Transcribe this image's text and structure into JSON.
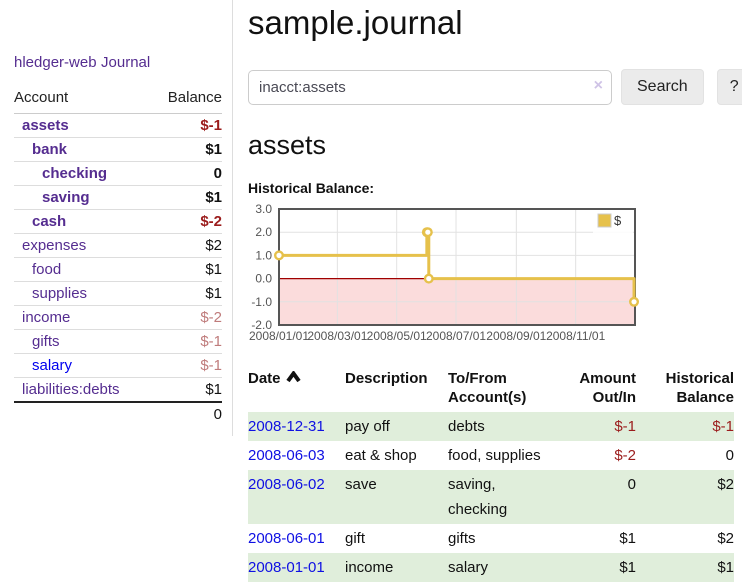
{
  "sidebar": {
    "app_title": "hledger-web",
    "journal_label": "Journal",
    "accounts_table": {
      "headers": {
        "account": "Account",
        "balance": "Balance"
      },
      "rows": [
        {
          "name": "assets",
          "depth": 1,
          "bold": true,
          "link_color": "purple",
          "balance": "$-1",
          "balance_color": "strong-negative"
        },
        {
          "name": "bank",
          "depth": 2,
          "bold": true,
          "link_color": "purple",
          "balance": "$1",
          "balance_color": "normal"
        },
        {
          "name": "checking",
          "depth": 3,
          "bold": true,
          "link_color": "purple",
          "balance": "0",
          "balance_color": "normal"
        },
        {
          "name": "saving",
          "depth": 3,
          "bold": true,
          "link_color": "purple",
          "balance": "$1",
          "balance_color": "normal"
        },
        {
          "name": "cash",
          "depth": 2,
          "bold": true,
          "link_color": "purple",
          "balance": "$-2",
          "balance_color": "strong-negative"
        },
        {
          "name": "expenses",
          "depth": 1,
          "bold": false,
          "link_color": "purple",
          "balance": "$2",
          "balance_color": "normal"
        },
        {
          "name": "food",
          "depth": 2,
          "bold": false,
          "link_color": "purple",
          "balance": "$1",
          "balance_color": "normal"
        },
        {
          "name": "supplies",
          "depth": 2,
          "bold": false,
          "link_color": "purple",
          "balance": "$1",
          "balance_color": "normal"
        },
        {
          "name": "income",
          "depth": 1,
          "bold": false,
          "link_color": "purple",
          "balance": "$-2",
          "balance_color": "dim-negative"
        },
        {
          "name": "gifts",
          "depth": 2,
          "bold": false,
          "link_color": "purple",
          "balance": "$-1",
          "balance_color": "dim-negative"
        },
        {
          "name": "salary",
          "depth": 2,
          "bold": false,
          "link_color": "blue",
          "balance": "$-1",
          "balance_color": "dim-negative"
        },
        {
          "name": "liabilities:debts",
          "depth": 1,
          "bold": false,
          "link_color": "purple",
          "balance": "$1",
          "balance_color": "normal"
        }
      ],
      "total": "0"
    }
  },
  "header": {
    "title": "sample.journal"
  },
  "search": {
    "query": "inacct:assets",
    "clear_icon": "×",
    "search_label": "Search",
    "help_label": "?"
  },
  "account_page": {
    "heading": "assets",
    "chart_label": "Historical Balance:"
  },
  "chart_data": {
    "type": "line",
    "title": "Historical Balance",
    "step": true,
    "series": [
      {
        "name": "$",
        "color": "#E6C14B",
        "points": [
          {
            "date": "2008-01-01",
            "value": 1
          },
          {
            "date": "2008-06-01",
            "value": 2
          },
          {
            "date": "2008-06-02",
            "value": 2
          },
          {
            "date": "2008-06-03",
            "value": 0
          },
          {
            "date": "2008-12-31",
            "value": -1
          }
        ]
      }
    ],
    "x_range": [
      "2008-01-01",
      "2009-01-01"
    ],
    "x_ticks": [
      "2008/01/01",
      "2008/03/01",
      "2008/05/01",
      "2008/07/01",
      "2008/09/01",
      "2008/11/01"
    ],
    "y_ticks": [
      3.0,
      2.0,
      1.0,
      0.0,
      -1.0,
      -2.0
    ],
    "ylim": [
      -2,
      3
    ],
    "grid": true,
    "legend": {
      "position": "top-right",
      "label": "$"
    },
    "colors": {
      "line": "#E6C14B",
      "marker_fill": "#ffffff",
      "negative_region": "#fbdcdc",
      "zero_line": "#a00000",
      "grid": "#e2e2e2",
      "border": "#555555",
      "tick_text": "#555555"
    }
  },
  "register_table": {
    "columns": [
      {
        "label": "Date",
        "sort": "asc"
      },
      {
        "label": "Description"
      },
      {
        "label": "To/From Account(s)"
      },
      {
        "label": "Amount Out/In",
        "align": "right"
      },
      {
        "label": "Historical Balance",
        "align": "right"
      }
    ],
    "rows": [
      {
        "date": "2008-12-31",
        "description": "pay off",
        "accounts": [
          "debts"
        ],
        "amount": "$-1",
        "amount_negative": true,
        "balance": "$-1",
        "balance_negative": true
      },
      {
        "date": "2008-06-03",
        "description": "eat & shop",
        "accounts": [
          "food",
          "supplies"
        ],
        "amount": "$-2",
        "amount_negative": true,
        "balance": "0",
        "balance_negative": false
      },
      {
        "date": "2008-06-02",
        "description": "save",
        "accounts": [
          "saving",
          "checking"
        ],
        "amount": "0",
        "amount_negative": false,
        "balance": "$2",
        "balance_negative": false
      },
      {
        "date": "2008-06-01",
        "description": "gift",
        "accounts": [
          "gifts"
        ],
        "amount": "$1",
        "amount_negative": false,
        "balance": "$2",
        "balance_negative": false
      },
      {
        "date": "2008-01-01",
        "description": "income",
        "accounts": [
          "salary"
        ],
        "amount": "$1",
        "amount_negative": false,
        "balance": "$1",
        "balance_negative": false
      }
    ]
  },
  "colors": {
    "accent_purple": "#552D90",
    "link_blue": "#0000EE",
    "strong_negative": "#9b1c1c",
    "dim_negative": "#bf7b7b",
    "row_stripe_green": "#e0eedb"
  }
}
